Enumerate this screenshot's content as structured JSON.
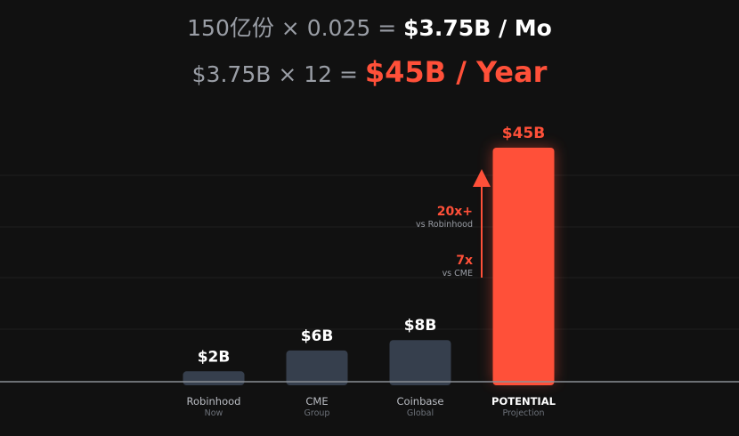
{
  "formula": {
    "line1_prefix": "150亿份 × 0.025 = ",
    "line1_result": "$3.75B / Mo",
    "line2_prefix": "$3.75B × 12 = ",
    "line2_result": "$45B / Year"
  },
  "colors": {
    "accent": "#ff5039",
    "bar": "#363f4d",
    "background": "#111111"
  },
  "chart_data": {
    "type": "bar",
    "title": "",
    "xlabel": "",
    "ylabel": "",
    "ylim": [
      0,
      45
    ],
    "categories": [
      "Robinhood",
      "CME",
      "Coinbase",
      "POTENTIAL"
    ],
    "subtitles": [
      "Now",
      "Group",
      "Global",
      "Projection"
    ],
    "values": [
      2,
      6,
      8,
      45
    ],
    "value_labels": [
      "$2B",
      "$6B",
      "$8B",
      "$45B"
    ],
    "highlight": [
      false,
      false,
      false,
      true
    ],
    "annotations": [
      {
        "label": "20x+",
        "sub": "vs Robinhood"
      },
      {
        "label": "7x",
        "sub": "vs CME"
      }
    ],
    "grid": true
  }
}
